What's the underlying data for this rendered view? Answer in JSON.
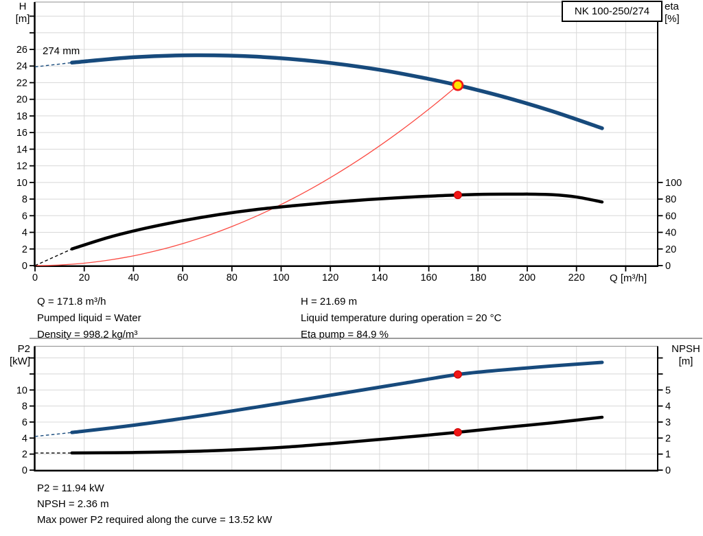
{
  "model": "NK 100-250/274",
  "colors": {
    "pump_blue": "#174a7c",
    "curve_black": "#000000",
    "system_red": "#fb4a42",
    "dot_red": "#f11616",
    "dot_red_edge": "#c40000",
    "marker_yellow": "#ffe400",
    "grid": "#d8d8d8",
    "axis": "#000000",
    "frame_top": "#8c8c8c"
  },
  "info_top": {
    "left": [
      "Q = 171.8 m³/h",
      "Pumped liquid = Water",
      "Density = 998.2 kg/m³"
    ],
    "right": [
      "H = 21.69 m",
      "Liquid temperature during operation = 20 °C",
      "Eta pump = 84.9 %"
    ]
  },
  "info_bottom": [
    "P2 = 11.94 kW",
    "NPSH = 2.36 m",
    "Max power P2 required along the curve = 13.52 kW"
  ],
  "chart_data": [
    {
      "id": "head-efficiency-chart",
      "type": "line",
      "title_box": "NK 100-250/274",
      "curve_label": "274 mm",
      "y_left": {
        "label": [
          "H",
          "[m]"
        ],
        "unit": "m",
        "ticks": [
          0,
          2,
          4,
          6,
          8,
          10,
          12,
          14,
          16,
          18,
          20,
          22,
          24,
          26
        ],
        "unlabeled_ticks": [
          28,
          30
        ],
        "range": [
          0,
          31.7
        ]
      },
      "y_right": {
        "label": [
          "eta",
          "[%]"
        ],
        "unit": "%",
        "ticks": [
          0,
          20,
          40,
          60,
          80,
          100
        ],
        "unlabeled_ticks": [],
        "range": [
          0,
          317
        ]
      },
      "x": {
        "label": "Q [m³/h]",
        "unit": "m³/h",
        "ticks": [
          0,
          20,
          40,
          60,
          80,
          100,
          120,
          140,
          160,
          180,
          200,
          220
        ],
        "unlabeled_ticks": [
          240
        ],
        "range": [
          0,
          253
        ]
      },
      "series": [
        {
          "name": "system-curve",
          "axis": "left",
          "color_key": "system_red",
          "width": 1.3,
          "quadratic_to": [
            171.8,
            21.69
          ]
        },
        {
          "name": "efficiency-curve",
          "axis": "right",
          "color_key": "curve_black",
          "width": 4.5,
          "dashed_lead": [
            [
              0,
              0
            ],
            [
              15,
              20
            ]
          ],
          "points": [
            [
              15,
              20
            ],
            [
              30,
              34
            ],
            [
              45,
              45
            ],
            [
              60,
              54
            ],
            [
              75,
              61.5
            ],
            [
              90,
              67.5
            ],
            [
              105,
              72
            ],
            [
              120,
              76
            ],
            [
              135,
              79.3
            ],
            [
              150,
              82
            ],
            [
              160,
              83.5
            ],
            [
              171.8,
              84.9
            ],
            [
              185,
              85.8
            ],
            [
              200,
              86
            ],
            [
              210,
              85.3
            ],
            [
              220,
              82.5
            ],
            [
              230.4,
              76.5
            ]
          ]
        },
        {
          "name": "pump-curve-274mm",
          "axis": "left",
          "color_key": "pump_blue",
          "width": 5.5,
          "dashed_lead": [
            [
              0,
              23.9
            ],
            [
              15,
              24.41
            ]
          ],
          "points": [
            [
              15,
              24.41
            ],
            [
              40,
              25.06
            ],
            [
              65,
              25.3
            ],
            [
              90,
              25.13
            ],
            [
              115,
              24.54
            ],
            [
              140,
              23.55
            ],
            [
              160,
              22.45
            ],
            [
              171.8,
              21.69
            ],
            [
              190,
              20.33
            ],
            [
              210,
              18.58
            ],
            [
              230.4,
              16.52
            ]
          ]
        }
      ],
      "markers": [
        {
          "name": "duty-point-marker",
          "q": 171.8,
          "value": 21.69,
          "axis": "left",
          "style": "yellow",
          "r": 7
        },
        {
          "name": "efficiency-point-marker",
          "q": 171.8,
          "value": 84.9,
          "axis": "right",
          "style": "red",
          "r": 5.5
        }
      ]
    },
    {
      "id": "power-npsh-chart",
      "type": "line",
      "y_left": {
        "label": [
          "P2",
          "[kW]"
        ],
        "unit": "kW",
        "ticks": [
          0,
          2,
          4,
          6,
          8,
          10
        ],
        "unlabeled_ticks": [
          12,
          14
        ],
        "range": [
          0,
          15.5
        ]
      },
      "y_right": {
        "label": [
          "NPSH",
          "[m]"
        ],
        "unit": "m",
        "ticks": [
          0,
          1,
          2,
          3,
          4,
          5
        ],
        "unlabeled_ticks": [
          6,
          7
        ],
        "range": [
          0,
          7.75
        ]
      },
      "x": {
        "label": "",
        "unit": "m³/h",
        "ticks": [],
        "unlabeled_ticks": [],
        "range": [
          0,
          253
        ]
      },
      "series": [
        {
          "name": "p2-curve",
          "axis": "left",
          "color_key": "pump_blue",
          "width": 5,
          "dashed_lead": [
            [
              0,
              4.2
            ],
            [
              15,
              4.7
            ]
          ],
          "points": [
            [
              15,
              4.7
            ],
            [
              40,
              5.6
            ],
            [
              70,
              6.9
            ],
            [
              100,
              8.35
            ],
            [
              130,
              9.85
            ],
            [
              150,
              10.85
            ],
            [
              171.8,
              11.94
            ],
            [
              190,
              12.5
            ],
            [
              210,
              13.0
            ],
            [
              230.4,
              13.45
            ]
          ]
        },
        {
          "name": "npsh-curve",
          "axis": "right",
          "color_key": "curve_black",
          "width": 4.5,
          "dashed_lead": [
            [
              0,
              1.07
            ],
            [
              15,
              1.07
            ]
          ],
          "points": [
            [
              15,
              1.07
            ],
            [
              40,
              1.1
            ],
            [
              70,
              1.2
            ],
            [
              100,
              1.42
            ],
            [
              130,
              1.78
            ],
            [
              150,
              2.05
            ],
            [
              171.8,
              2.36
            ],
            [
              190,
              2.65
            ],
            [
              210,
              2.95
            ],
            [
              230.4,
              3.3
            ]
          ]
        }
      ],
      "markers": [
        {
          "name": "p2-point-marker",
          "q": 171.8,
          "value": 11.94,
          "axis": "left",
          "style": "red",
          "r": 5.5
        },
        {
          "name": "npsh-point-marker",
          "q": 171.8,
          "value": 2.36,
          "axis": "right",
          "style": "red",
          "r": 5.5
        }
      ]
    }
  ]
}
